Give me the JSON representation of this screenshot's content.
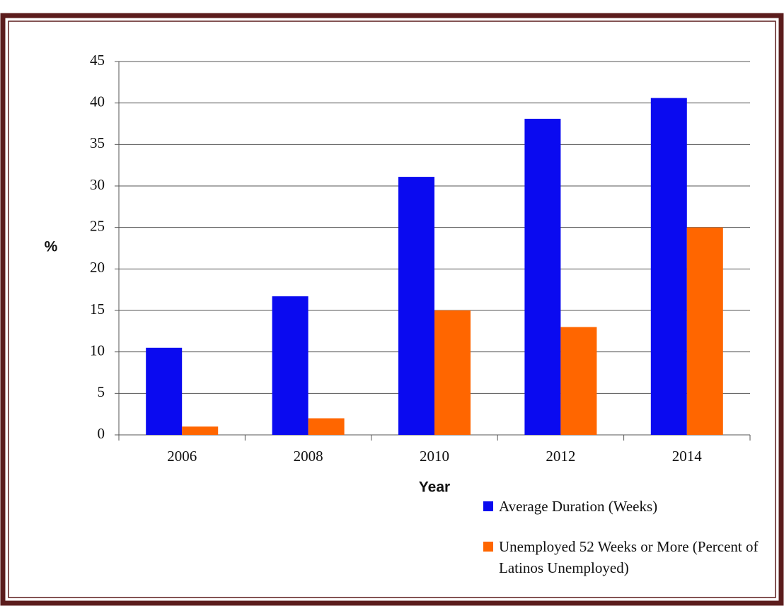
{
  "chart_data": {
    "type": "bar",
    "categories": [
      "2006",
      "2008",
      "2010",
      "2012",
      "2014"
    ],
    "series": [
      {
        "name": "Average Duration (Weeks)",
        "color": "#0a0af0",
        "values": [
          10.5,
          16.7,
          31.1,
          38.1,
          40.6
        ]
      },
      {
        "name": "Unemployed 52 Weeks or More (Percent of Latinos Unemployed)",
        "color": "#ff6600",
        "values": [
          1,
          2,
          15,
          13,
          25
        ]
      }
    ],
    "y_label": "%",
    "x_label": "Year",
    "ylim": [
      0,
      45
    ],
    "yticks": [
      0,
      5,
      10,
      15,
      20,
      25,
      30,
      35,
      40,
      45
    ],
    "grid": true
  }
}
